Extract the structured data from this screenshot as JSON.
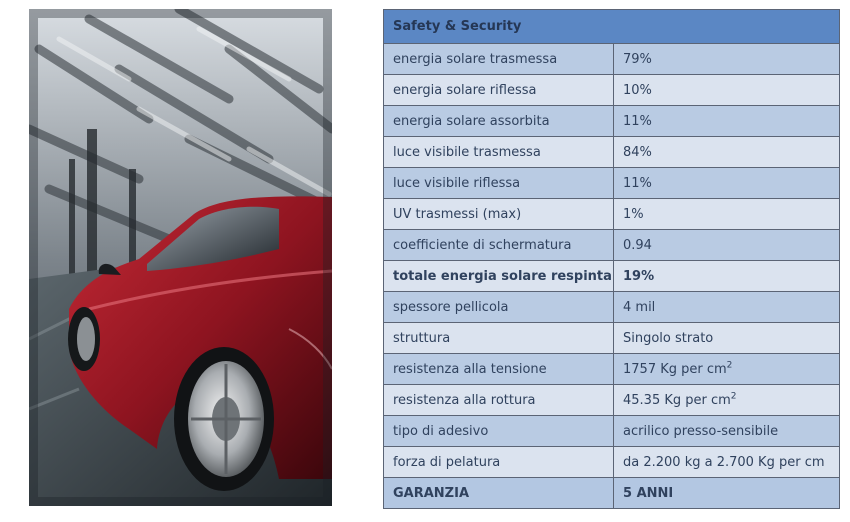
{
  "table": {
    "header": "Safety & Security",
    "rows": [
      {
        "label": "energia solare trasmessa",
        "value": "79%"
      },
      {
        "label": "energia solare riflessa",
        "value": "10%"
      },
      {
        "label": "energia solare assorbita",
        "value": "11%"
      },
      {
        "label": "luce visibile trasmessa",
        "value": "84%"
      },
      {
        "label": "luce visibile riflessa",
        "value": "11%"
      },
      {
        "label": "UV trasmessi (max)",
        "value": "1%"
      },
      {
        "label": "coefficiente di schermatura",
        "value": "0.94"
      },
      {
        "label": "totale energia solare respinta",
        "value": "19%"
      },
      {
        "label": "spessore pellicola",
        "value": "4 mil"
      },
      {
        "label": "struttura",
        "value": "Singolo strato"
      },
      {
        "label": "resistenza alla tensione",
        "value": "1757 Kg per cm",
        "sup": "2"
      },
      {
        "label": "resistenza alla rottura",
        "value": "45.35 Kg per cm",
        "sup": "2"
      },
      {
        "label": "tipo di adesivo",
        "value": "acrilico presso-sensibile"
      },
      {
        "label": "forza di pelatura",
        "value": "da 2.200 kg a 2.700 Kg per cm"
      }
    ],
    "footer": {
      "label": "GARANZIA",
      "value": "5 ANNI"
    }
  },
  "colors": {
    "header_bg": "#5b87c4",
    "row_dark": "#b9cbe3",
    "row_light": "#dbe3ef",
    "text": "#30425e",
    "car_red": "#8e1420"
  }
}
